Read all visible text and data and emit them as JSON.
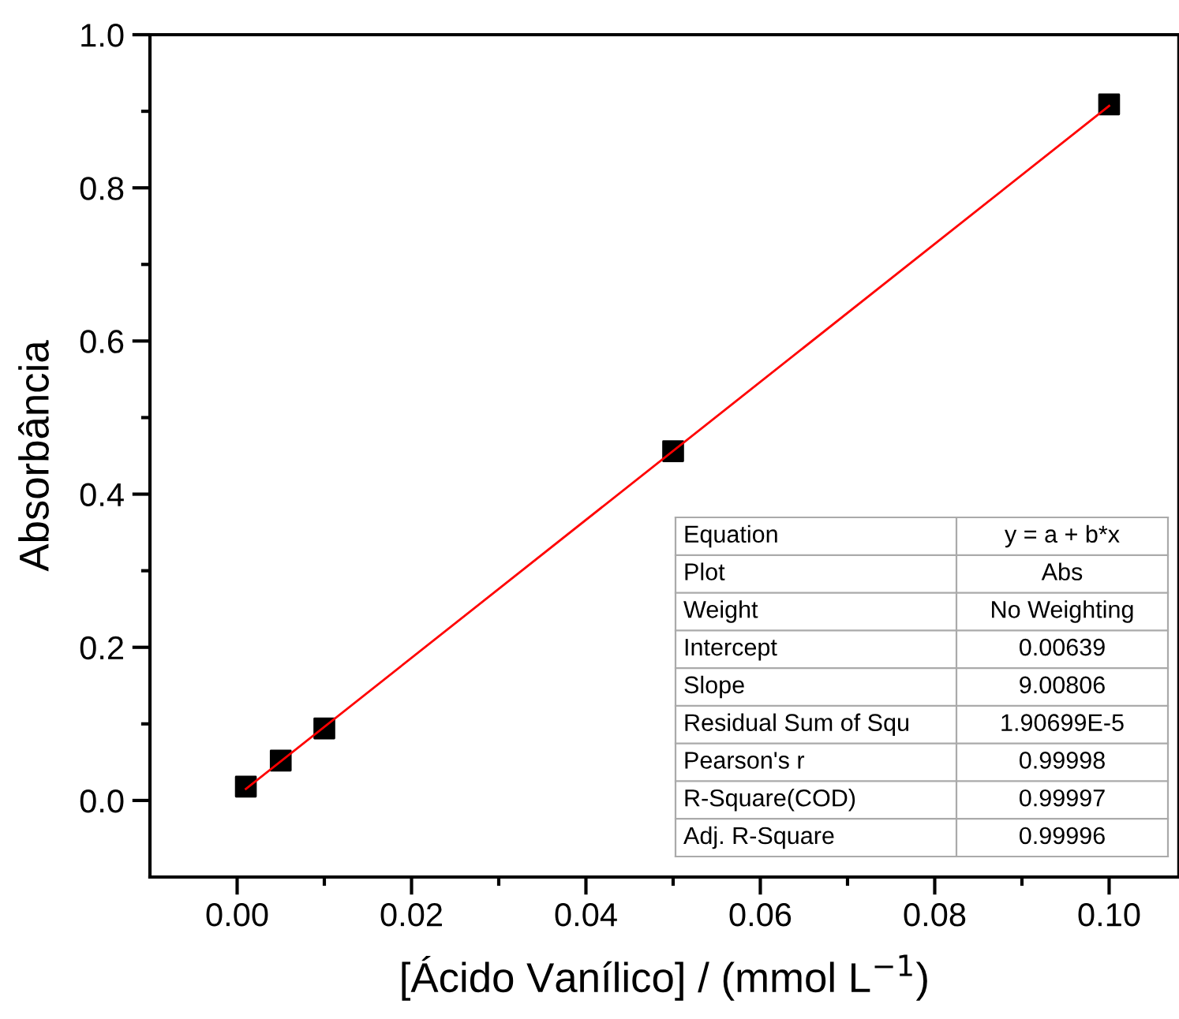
{
  "chart_data": {
    "type": "scatter",
    "xlabel": "[Ácido Vanílico] / (mmol L$^{−1}$)",
    "ylabel": "Absorbância",
    "series": [
      {
        "type": "scatter",
        "color": "#000000",
        "marker": "square",
        "x": [
          0.001,
          0.005,
          0.01,
          0.05,
          0.1
        ],
        "values": [
          0.018,
          0.052,
          0.094,
          0.456,
          0.909
        ]
      },
      {
        "type": "line",
        "color": "#ff0000",
        "marker": "none",
        "line_style": "solid",
        "x": [
          0.001,
          0.1
        ],
        "values": [
          0.015,
          0.907
        ]
      }
    ],
    "xlim": [
      -0.01,
      0.108
    ],
    "ylim": [
      -0.1,
      1.0
    ],
    "xticks": [
      {
        "value": 0,
        "label": "0.00"
      },
      {
        "value": 0.01,
        "label": null
      },
      0.02,
      {
        "value": 0.03,
        "label": null
      },
      0.04,
      {
        "value": 0.05,
        "label": null
      },
      0.06,
      {
        "value": 0.07,
        "label": null
      },
      0.08,
      {
        "value": 0.09,
        "label": null
      },
      {
        "value": 0.1,
        "label": "0.10"
      }
    ],
    "yticks": [
      {
        "value": 0,
        "label": "0.0"
      },
      {
        "value": 0.1,
        "label": null
      },
      0.2,
      {
        "value": 0.3,
        "label": null
      },
      0.4,
      {
        "value": 0.5,
        "label": null
      },
      0.6,
      {
        "value": 0.7,
        "label": null
      },
      0.8,
      {
        "value": 0.9,
        "label": null
      },
      {
        "value": 1.0,
        "label": "1.0"
      }
    ],
    "grid": false,
    "annotations": [
      "Equation",
      "y = a + b*x",
      "Plot",
      "Abs",
      "Weight",
      "No Weighting",
      "Intercept",
      "0.00639",
      "Slope",
      "9.00806",
      "Residual Sum of Squ",
      "1.90699E-5",
      "Pearson's r",
      "0.99998",
      "R-Square(COD)",
      "0.99997",
      "Adj. R-Square",
      "0.99996"
    ]
  }
}
